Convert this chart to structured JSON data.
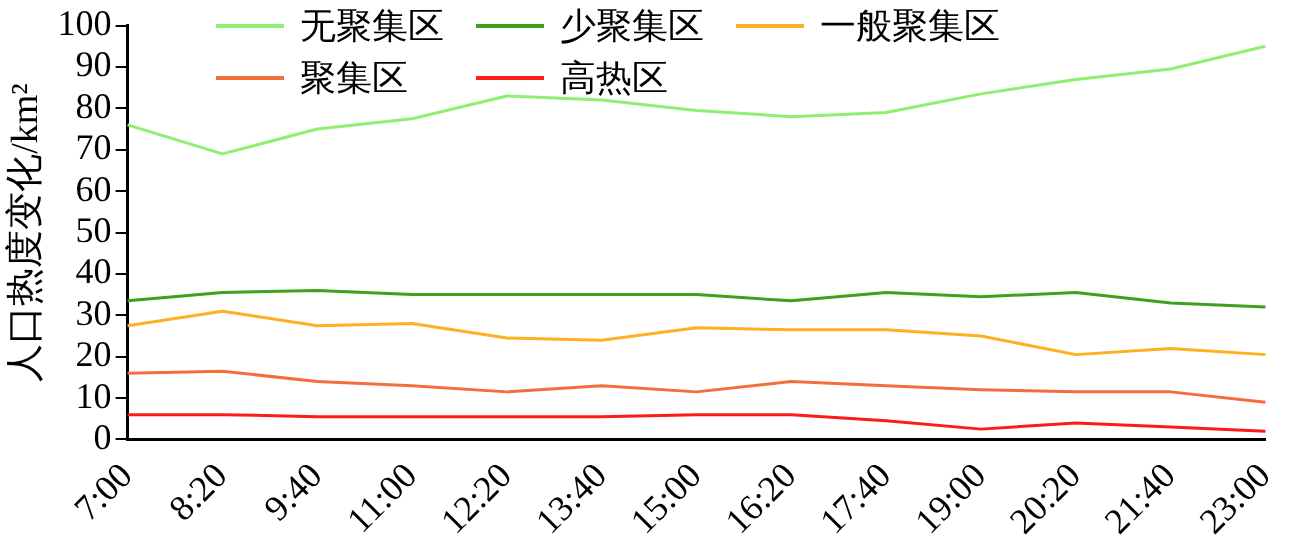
{
  "chart_data": {
    "type": "line",
    "ylabel": "人口热度变化/km²",
    "categories": [
      "7:00",
      "8:20",
      "9:40",
      "11:00",
      "12:20",
      "13:40",
      "15:00",
      "16:20",
      "17:40",
      "19:00",
      "20:20",
      "21:40",
      "23:00"
    ],
    "ylim": [
      0,
      100
    ],
    "yticks": [
      0,
      10,
      20,
      30,
      40,
      50,
      60,
      70,
      80,
      90,
      100
    ],
    "grid": false,
    "legend": "top",
    "marker": "none",
    "line_style": "solid",
    "series": [
      {
        "name": "无聚集区",
        "color": "#90ee70",
        "values": [
          76,
          69,
          75,
          77.5,
          83,
          82,
          79.5,
          78,
          79,
          83.5,
          87,
          89.5,
          95
        ]
      },
      {
        "name": "少聚集区",
        "color": "#3fa01e",
        "values": [
          33.5,
          35.5,
          36,
          35,
          35,
          35,
          35,
          33.5,
          35.5,
          34.5,
          35.5,
          33,
          32
        ]
      },
      {
        "name": "一般聚集区",
        "color": "#ffb020",
        "values": [
          27.5,
          31,
          27.5,
          28,
          24.5,
          24,
          27,
          26.5,
          26.5,
          25,
          20.5,
          22,
          20.5
        ]
      },
      {
        "name": "聚集区",
        "color": "#f46d3a",
        "values": [
          16,
          16.5,
          14,
          13,
          11.5,
          13,
          11.5,
          14,
          13,
          12,
          11.5,
          11.5,
          9
        ]
      },
      {
        "name": "高热区",
        "color": "#ff1a1a",
        "values": [
          6,
          6,
          5.5,
          5.5,
          5.5,
          5.5,
          6,
          6,
          4.5,
          2.5,
          4,
          3,
          2
        ]
      }
    ]
  }
}
